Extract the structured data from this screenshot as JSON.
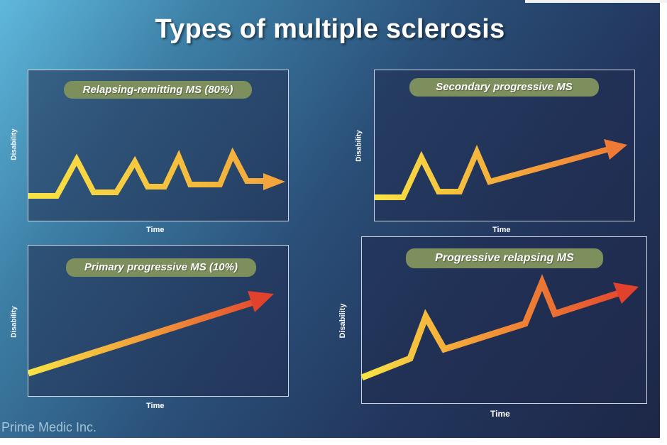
{
  "slide": {
    "title": "Types of multiple sclerosis",
    "watermark": "Prime Medic Inc."
  },
  "panels": [
    {
      "label": "Relapsing-remitting MS (80%)",
      "xlabel": "Time",
      "ylabel": "Disability",
      "pattern": "relapses then full recovery"
    },
    {
      "label": "Secondary progressive MS",
      "xlabel": "Time",
      "ylabel": "Disability",
      "pattern": "relapses then steady progression"
    },
    {
      "label": "Primary progressive MS (10%)",
      "xlabel": "Time",
      "ylabel": "Disability",
      "pattern": "steady progression from onset"
    },
    {
      "label": "Progressive relapsing MS",
      "xlabel": "Time",
      "ylabel": "Disability",
      "pattern": "steady progression with relapses"
    }
  ],
  "colors": {
    "line_start": "#f8e444",
    "line_mid": "#f3a43a",
    "line_end": "#e2412c",
    "pill": "#7d8f5c"
  }
}
